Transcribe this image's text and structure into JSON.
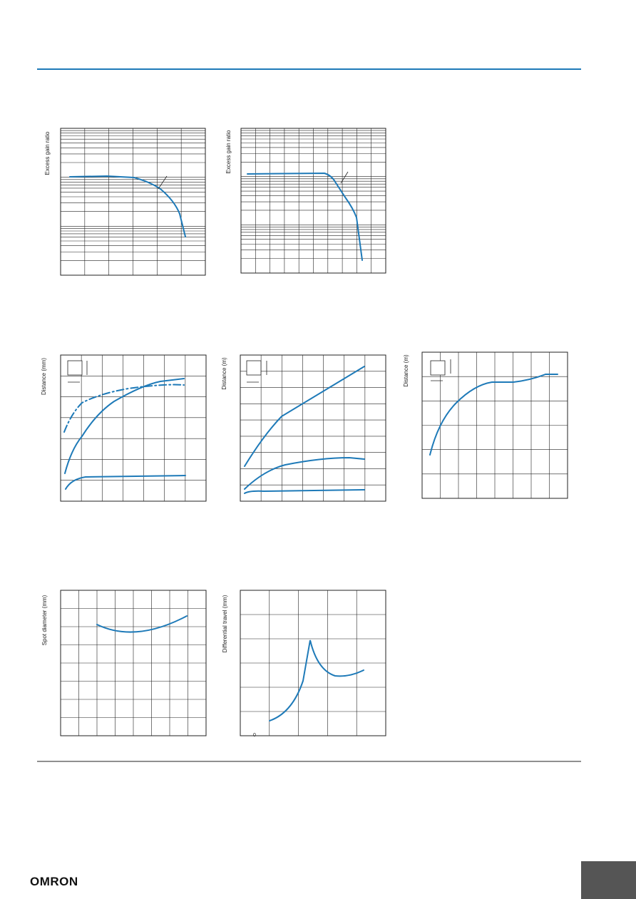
{
  "axis_labels": {
    "excess_gain_1": "Excess gain ratio",
    "excess_gain_2": "Excess gain ratio",
    "distance_mm": "Distance (mm)",
    "distance_m_1": "Distance (m)",
    "distance_m_2": "Distance (m)",
    "spot_diameter": "Spot diameter (mm)",
    "differential_travel": "Differential travel (mm)"
  },
  "zero_label": "0",
  "logo": "OMRON"
}
